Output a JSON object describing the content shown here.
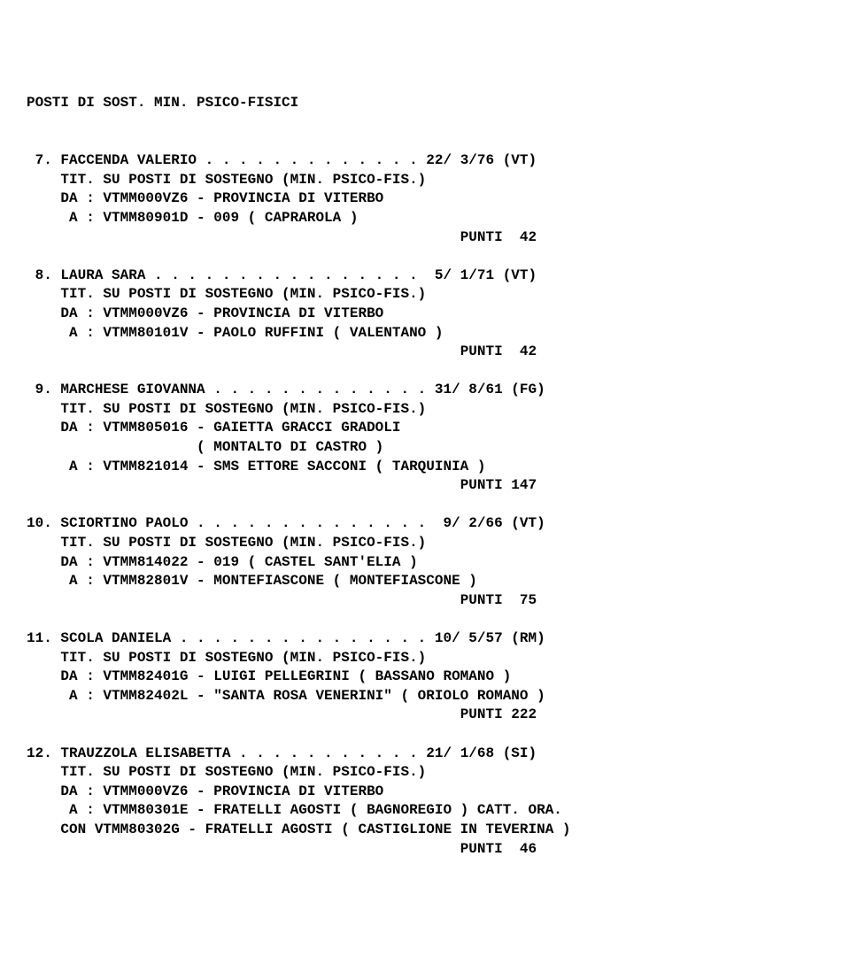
{
  "title": "POSTI DI SOST. MIN. PSICO-FISICI",
  "entries": [
    {
      "num": " 7",
      "name": "FACCENDA VALERIO",
      "dots": " . . . . . . . . . . . . . ",
      "ref": "22/ 3/76 (VT)",
      "tit": "TIT. SU POSTI DI SOSTEGNO (MIN. PSICO-FIS.)",
      "da": "DA : VTMM000VZ6 - PROVINCIA DI VITERBO",
      "a": " A : VTMM80901D - 009 ( CAPRAROLA )",
      "extra": "",
      "punti": "PUNTI  42"
    },
    {
      "num": " 8",
      "name": "LAURA SARA",
      "dots": " . . . . . . . . . . . . . . . .  ",
      "ref": "5/ 1/71 (VT)",
      "tit": "TIT. SU POSTI DI SOSTEGNO (MIN. PSICO-FIS.)",
      "da": "DA : VTMM000VZ6 - PROVINCIA DI VITERBO",
      "a": " A : VTMM80101V - PAOLO RUFFINI ( VALENTANO )",
      "extra": "",
      "punti": "PUNTI  42"
    },
    {
      "num": " 9",
      "name": "MARCHESE GIOVANNA",
      "dots": " . . . . . . . . . . . . . ",
      "ref": "31/ 8/61 (FG)",
      "tit": "TIT. SU POSTI DI SOSTEGNO (MIN. PSICO-FIS.)",
      "da": "DA : VTMM805016 - GAIETTA GRACCI GRADOLI\n                    ( MONTALTO DI CASTRO )",
      "a": " A : VTMM821014 - SMS ETTORE SACCONI ( TARQUINIA )",
      "extra": "",
      "punti": "PUNTI 147"
    },
    {
      "num": "10",
      "name": "SCIORTINO PAOLO",
      "dots": " . . . . . . . . . . . . . .  ",
      "ref": "9/ 2/66 (VT)",
      "tit": "TIT. SU POSTI DI SOSTEGNO (MIN. PSICO-FIS.)",
      "da": "DA : VTMM814022 - 019 ( CASTEL SANT'ELIA )",
      "a": " A : VTMM82801V - MONTEFIASCONE ( MONTEFIASCONE )",
      "extra": "",
      "punti": "PUNTI  75"
    },
    {
      "num": "11",
      "name": "SCOLA DANIELA",
      "dots": " . . . . . . . . . . . . . . . ",
      "ref": "10/ 5/57 (RM)",
      "tit": "TIT. SU POSTI DI SOSTEGNO (MIN. PSICO-FIS.)",
      "da": "DA : VTMM82401G - LUIGI PELLEGRINI ( BASSANO ROMANO )",
      "a": " A : VTMM82402L - \"SANTA ROSA VENERINI\" ( ORIOLO ROMANO )",
      "extra": "",
      "punti": "PUNTI 222"
    },
    {
      "num": "12",
      "name": "TRAUZZOLA ELISABETTA",
      "dots": " . . . . . . . . . . . ",
      "ref": "21/ 1/68 (SI)",
      "tit": "TIT. SU POSTI DI SOSTEGNO (MIN. PSICO-FIS.)",
      "da": "DA : VTMM000VZ6 - PROVINCIA DI VITERBO",
      "a": " A : VTMM80301E - FRATELLI AGOSTI ( BAGNOREGIO ) CATT. ORA.",
      "extra": "    CON VTMM80302G - FRATELLI AGOSTI ( CASTIGLIONE IN TEVERINA )",
      "punti": "PUNTI  46"
    }
  ]
}
